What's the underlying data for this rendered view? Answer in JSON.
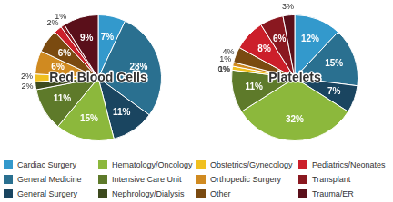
{
  "chart_data": [
    {
      "type": "pie",
      "title": "Red Blood Cells",
      "categories": [
        "Cardiac Surgery",
        "General Medicine",
        "General Surgery",
        "Hematology/Oncology",
        "Intensive Care Unit",
        "Nephrology/Dialysis",
        "Obstetrics/Gynecology",
        "Orthopedic Surgery",
        "Other",
        "Pediatrics/Neonates",
        "Transplant",
        "Trauma/ER"
      ],
      "values": [
        7,
        28,
        11,
        15,
        11,
        2,
        2,
        6,
        6,
        2,
        1,
        9
      ],
      "value_labels": [
        "7%",
        "28%",
        "11%",
        "15%",
        "11%",
        "2%",
        "2%",
        "6%",
        "6%",
        "2%",
        "1%",
        "9%"
      ],
      "colors": [
        "#3399cc",
        "#2a7090",
        "#1a4560",
        "#8cb83c",
        "#5e7a2a",
        "#3d4a1e",
        "#f0c020",
        "#d08a20",
        "#7a4a10",
        "#cc1f2a",
        "#8a1820",
        "#5a0f1a"
      ],
      "data_labels": true,
      "legend": "bottom"
    },
    {
      "type": "pie",
      "title": "Platelets",
      "categories": [
        "Cardiac Surgery",
        "General Medicine",
        "General Surgery",
        "Hematology/Oncology",
        "Intensive Care Unit",
        "Nephrology/Dialysis",
        "Obstetrics/Gynecology",
        "Orthopedic Surgery",
        "Other",
        "Pediatrics/Neonates",
        "Transplant",
        "Trauma/ER"
      ],
      "values": [
        12,
        15,
        7,
        32,
        11,
        0,
        1,
        1,
        4,
        8,
        6,
        3
      ],
      "value_labels": [
        "12%",
        "15%",
        "7%",
        "32%",
        "11%",
        "0%",
        "1%",
        "1%",
        "4%",
        "8%",
        "6%",
        "3%"
      ],
      "colors": [
        "#3399cc",
        "#2a7090",
        "#1a4560",
        "#8cb83c",
        "#5e7a2a",
        "#3d4a1e",
        "#f0c020",
        "#d08a20",
        "#7a4a10",
        "#cc1f2a",
        "#8a1820",
        "#5a0f1a"
      ],
      "data_labels": true,
      "legend": "bottom"
    }
  ]
}
